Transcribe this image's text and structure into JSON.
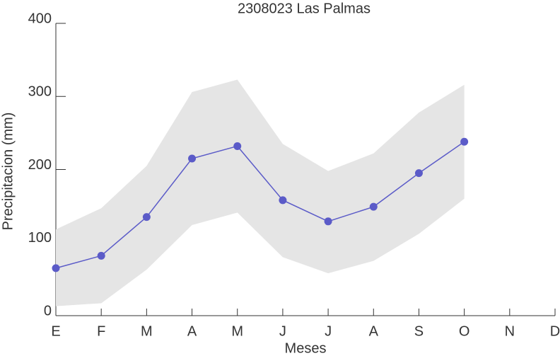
{
  "chart_data": {
    "type": "line",
    "title": "2308023 Las Palmas",
    "xlabel": "Meses",
    "ylabel": "Precipitacion (mm)",
    "categories": [
      "E",
      "F",
      "M",
      "A",
      "M",
      "J",
      "J",
      "A",
      "S",
      "O",
      "N",
      "D"
    ],
    "values": [
      65,
      82,
      135,
      215,
      232,
      158,
      129,
      149,
      195,
      238,
      null,
      null
    ],
    "upper": [
      118,
      147,
      205,
      306,
      323,
      235,
      198,
      222,
      278,
      316,
      null,
      null
    ],
    "lower": [
      13,
      17,
      63,
      124,
      141,
      80,
      58,
      75,
      112,
      160,
      null,
      null
    ],
    "color": "#5b5bc8",
    "band_color": "#e5e5e5",
    "ylim": [
      0,
      400
    ],
    "yticks": [
      0,
      100,
      200,
      300,
      400
    ]
  }
}
